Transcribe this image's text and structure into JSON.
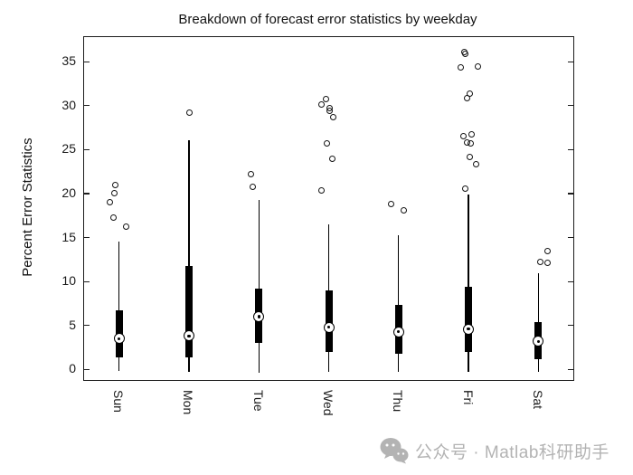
{
  "figure": {
    "title": "Breakdown of forecast error statistics by weekday",
    "background": "#ffffff"
  },
  "chart_data": {
    "type": "boxplot",
    "title": "Breakdown of forecast error statistics by weekday",
    "xlabel": "",
    "ylabel": "Percent Error Statistics",
    "categories": [
      "Sun",
      "Mon",
      "Tue",
      "Wed",
      "Thu",
      "Fri",
      "Sat"
    ],
    "yticks": [
      0,
      5,
      10,
      15,
      20,
      25,
      30,
      35
    ],
    "ylim": [
      -1.2,
      37.8
    ],
    "grid": false,
    "legend": null,
    "style_note": "MATLAB compact boxplot: thin black whisker line, thick black box, white circled dot median, open-circle outliers",
    "series": [
      {
        "label": "Sun",
        "whisker_low": -0.2,
        "q1": 1.35,
        "median": 3.5,
        "q3": 6.7,
        "whisker_high": 14.5,
        "outliers_dx_value": [
          [
            -4,
            21.0
          ],
          [
            -5,
            20.1
          ],
          [
            -10,
            19.0
          ],
          [
            -6,
            17.3
          ],
          [
            8,
            16.2
          ]
        ]
      },
      {
        "label": "Mon",
        "whisker_low": -0.3,
        "q1": 1.4,
        "median": 3.8,
        "q3": 11.8,
        "whisker_high": 26.1,
        "outliers_dx_value": [
          [
            1,
            29.2
          ]
        ]
      },
      {
        "label": "Tue",
        "whisker_low": -0.4,
        "q1": 3.0,
        "median": 6.0,
        "q3": 9.2,
        "whisker_high": 19.3,
        "outliers_dx_value": [
          [
            -9,
            22.2
          ],
          [
            -7,
            20.8
          ]
        ]
      },
      {
        "label": "Wed",
        "whisker_low": -0.3,
        "q1": 1.95,
        "median": 4.8,
        "q3": 8.95,
        "whisker_high": 16.5,
        "outliers_dx_value": [
          [
            -3,
            30.8
          ],
          [
            -8,
            30.1
          ],
          [
            1,
            29.7
          ],
          [
            1,
            29.4
          ],
          [
            5,
            28.7
          ],
          [
            -2,
            25.7
          ],
          [
            4,
            24.0
          ],
          [
            -8,
            20.4
          ]
        ]
      },
      {
        "label": "Thu",
        "whisker_low": -0.3,
        "q1": 1.75,
        "median": 4.3,
        "q3": 7.3,
        "whisker_high": 15.3,
        "outliers_dx_value": [
          [
            -8,
            18.8
          ],
          [
            6,
            18.1
          ]
        ]
      },
      {
        "label": "Fri",
        "whisker_low": -0.3,
        "q1": 1.95,
        "median": 4.6,
        "q3": 9.45,
        "whisker_high": 19.9,
        "outliers_dx_value": [
          [
            -5,
            36.1
          ],
          [
            -4,
            35.9
          ],
          [
            10,
            34.5
          ],
          [
            -9,
            34.4
          ],
          [
            1,
            31.4
          ],
          [
            -2,
            30.9
          ],
          [
            3,
            26.7
          ],
          [
            -6,
            26.5
          ],
          [
            -2,
            25.8
          ],
          [
            2,
            25.7
          ],
          [
            1,
            24.2
          ],
          [
            8,
            23.3
          ],
          [
            -4,
            20.6
          ]
        ]
      },
      {
        "label": "Sat",
        "whisker_low": -0.3,
        "q1": 1.2,
        "median": 3.2,
        "q3": 5.35,
        "whisker_high": 10.9,
        "outliers_dx_value": [
          [
            10,
            13.5
          ],
          [
            2,
            12.2
          ],
          [
            10,
            12.1
          ]
        ]
      }
    ],
    "colors": {
      "box": "#000000",
      "whisker": "#000000",
      "outlier_stroke": "#141414",
      "median_fill": "#ffffff",
      "median_stroke": "#000000",
      "axis": "#1c1c1c",
      "text": "#1a1a1a"
    }
  },
  "watermark": {
    "icon": "wechat-icon",
    "text": "公众号 · Matlab科研助手",
    "color": "#b3b3b3"
  }
}
